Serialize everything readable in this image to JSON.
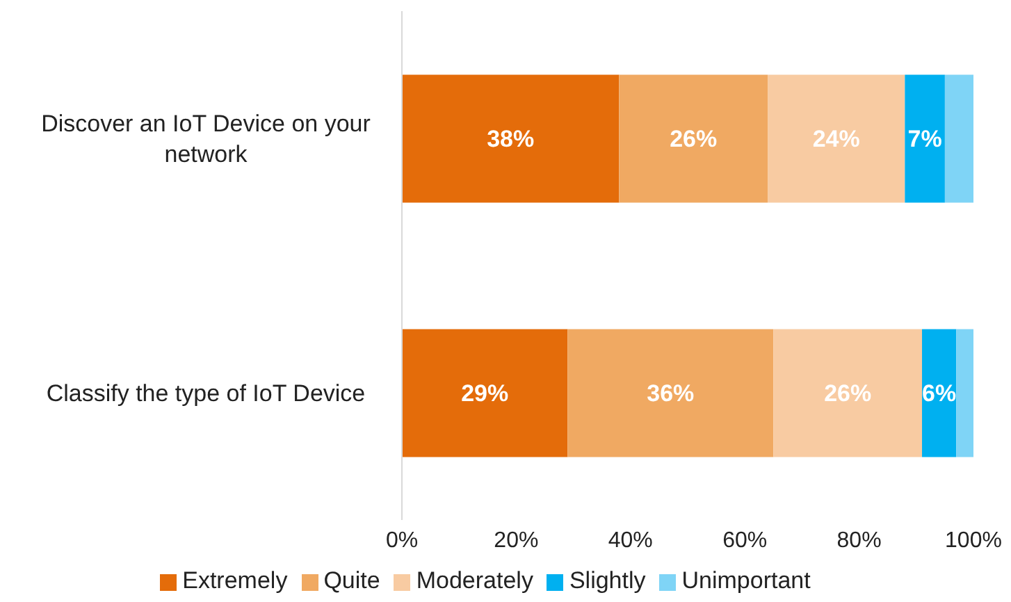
{
  "chart_data": {
    "type": "bar",
    "orientation": "horizontal",
    "stacked": true,
    "categories": [
      "Discover an IoT Device on your network",
      "Classify the type of IoT Device"
    ],
    "series": [
      {
        "name": "Extremely",
        "color": "#e46c0a",
        "values": [
          38,
          29
        ],
        "value_labels": [
          "38%",
          "29%"
        ]
      },
      {
        "name": "Quite",
        "color": "#f0a962",
        "values": [
          26,
          36
        ],
        "value_labels": [
          "26%",
          "36%"
        ]
      },
      {
        "name": "Moderately",
        "color": "#f8cba2",
        "values": [
          24,
          26
        ],
        "value_labels": [
          "24%",
          "26%"
        ]
      },
      {
        "name": "Slightly",
        "color": "#00b0f0",
        "values": [
          7,
          6
        ],
        "value_labels": [
          "7%",
          "6%"
        ]
      },
      {
        "name": "Unimportant",
        "color": "#7fd4f6",
        "values": [
          5,
          3
        ],
        "value_labels": [
          null,
          null
        ]
      }
    ],
    "xlim": [
      0,
      100
    ],
    "xticks": [
      {
        "value": 0,
        "label": "0%"
      },
      {
        "value": 20,
        "label": "20%"
      },
      {
        "value": 40,
        "label": "40%"
      },
      {
        "value": 60,
        "label": "60%"
      },
      {
        "value": 80,
        "label": "80%"
      },
      {
        "value": 100,
        "label": "100%"
      }
    ],
    "legend": "bottom",
    "grid": false
  }
}
